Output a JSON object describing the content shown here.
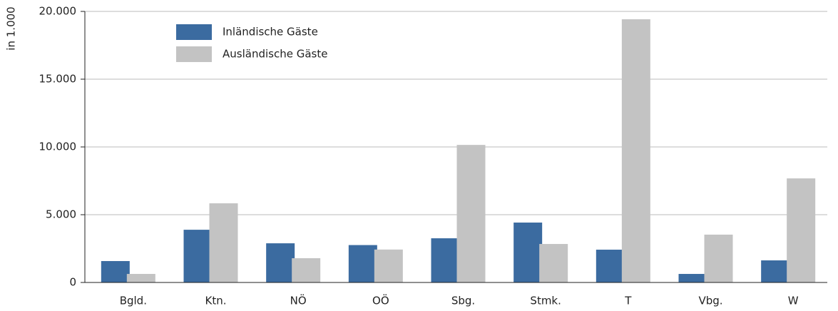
{
  "chart_data": {
    "type": "bar",
    "y_axis_label": "in 1.000",
    "categories": [
      "Bgld.",
      "Ktn.",
      "NÖ",
      "OÖ",
      "Sbg.",
      "Stmk.",
      "T",
      "Vbg.",
      "W"
    ],
    "series": [
      {
        "name": "Inländische Gäste",
        "color": "#3b6ba0",
        "values": [
          1580,
          3890,
          2890,
          2760,
          3260,
          4420,
          2420,
          630,
          1630
        ]
      },
      {
        "name": "Ausländische Gäste",
        "color": "#c3c3c3",
        "values": [
          630,
          5840,
          1790,
          2430,
          10150,
          2840,
          19420,
          3530,
          7680
        ]
      }
    ],
    "ylim": [
      0,
      20000
    ],
    "yticks": [
      {
        "value": 0,
        "label": "0"
      },
      {
        "value": 5000,
        "label": "5.000"
      },
      {
        "value": 10000,
        "label": "10.000"
      },
      {
        "value": 15000,
        "label": "15.000"
      },
      {
        "value": 20000,
        "label": "20.000"
      }
    ],
    "grid": true,
    "legend": "top-left"
  }
}
